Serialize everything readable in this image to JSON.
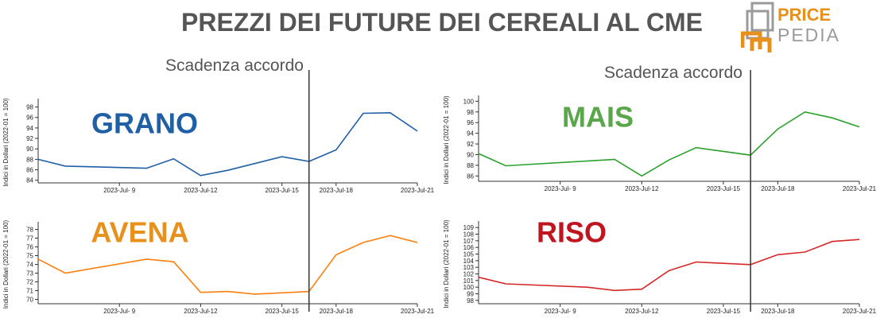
{
  "title": "PREZZI DEI FUTURE DEI CEREALI AL CME",
  "logo": {
    "line1": "PRICE",
    "line2": "PEDIA",
    "accent_color": "#e8901c",
    "gray_color": "#9a9a9a"
  },
  "annotation": "Scadenza accordo",
  "chart_data": [
    {
      "type": "line",
      "name": "GRANO",
      "color": "#1f5fa6",
      "name_color": "#1f5fa6",
      "ylabel": "Indici in Dollari (2022-01 = 100)",
      "yticks": [
        84,
        86,
        88,
        90,
        92,
        94,
        96,
        98
      ],
      "ylim": [
        83.5,
        99
      ],
      "x": [
        0,
        1,
        4,
        5,
        6,
        7,
        9,
        10,
        11,
        12,
        13,
        14
      ],
      "values": [
        88.0,
        86.7,
        86.3,
        88.1,
        84.9,
        85.9,
        88.5,
        87.6,
        89.8,
        96.8,
        96.9,
        93.4
      ],
      "xticks": [
        3,
        6,
        9,
        11,
        14
      ],
      "xtick_labels": [
        "2023-Jul- 9",
        "2023-Jul-12",
        "2023-Jul-15",
        "2023-Jul-18",
        "2023-Jul-21"
      ],
      "xlim": [
        0,
        14
      ],
      "event_x": 10,
      "show_annotation": true
    },
    {
      "type": "line",
      "name": "MAIS",
      "color": "#2ca02c",
      "name_color": "#5aa64a",
      "ylabel": "Indici in Dollari (2022-01 = 100)",
      "yticks": [
        86,
        88,
        90,
        92,
        94,
        96,
        98,
        100
      ],
      "ylim": [
        85,
        100.5
      ],
      "x": [
        0,
        1,
        5,
        6,
        7,
        8,
        10,
        11,
        12,
        13,
        14
      ],
      "values": [
        90.2,
        87.9,
        89.1,
        86.0,
        89.0,
        91.3,
        89.9,
        94.8,
        98.0,
        96.9,
        95.2
      ],
      "xticks": [
        3,
        6,
        9,
        11,
        14
      ],
      "xtick_labels": [
        "2023-Jul- 9",
        "2023-Jul-12",
        "2023-Jul-15",
        "2023-Jul-18",
        "2023-Jul-21"
      ],
      "xlim": [
        0,
        14
      ],
      "event_x": 10,
      "show_annotation": true
    },
    {
      "type": "line",
      "name": "AVENA",
      "color": "#ff7f0e",
      "name_color": "#e8901c",
      "ylabel": "Indici in Dollari (2022-01 = 100)",
      "yticks": [
        70,
        71,
        72,
        73,
        74,
        75,
        76,
        77,
        78
      ],
      "ylim": [
        69.5,
        78.5
      ],
      "x": [
        0,
        1,
        4,
        5,
        6,
        7,
        8,
        10,
        11,
        12,
        13,
        14
      ],
      "values": [
        74.6,
        73.0,
        74.6,
        74.3,
        70.8,
        70.9,
        70.6,
        70.9,
        75.1,
        76.5,
        77.3,
        76.5
      ],
      "xticks": [
        3,
        6,
        9,
        11,
        14
      ],
      "xtick_labels": [
        "2023-Jul- 9",
        "2023-Jul-12",
        "2023-Jul-15",
        "2023-Jul-18",
        "2023-Jul-21"
      ],
      "xlim": [
        0,
        14
      ],
      "event_x": 10,
      "show_annotation": false
    },
    {
      "type": "line",
      "name": "RISO",
      "color": "#d62728",
      "name_color": "#c0141e",
      "ylabel": "Indici in Dollari (2022-01 = 100)",
      "yticks": [
        98,
        99,
        100,
        101,
        102,
        103,
        104,
        105,
        106,
        107,
        108,
        109
      ],
      "ylim": [
        97.5,
        109.5
      ],
      "x": [
        0,
        1,
        4,
        5,
        6,
        7,
        8,
        10,
        11,
        12,
        13,
        14
      ],
      "values": [
        101.5,
        100.5,
        100.0,
        99.5,
        99.7,
        102.5,
        103.8,
        103.4,
        104.9,
        105.3,
        106.9,
        107.2
      ],
      "xticks": [
        3,
        6,
        9,
        11,
        14
      ],
      "xtick_labels": [
        "2023-Jul- 9",
        "2023-Jul-12",
        "2023-Jul-15",
        "2023-Jul-18",
        "2023-Jul-21"
      ],
      "xlim": [
        0,
        14
      ],
      "event_x": 10,
      "show_annotation": false
    }
  ]
}
